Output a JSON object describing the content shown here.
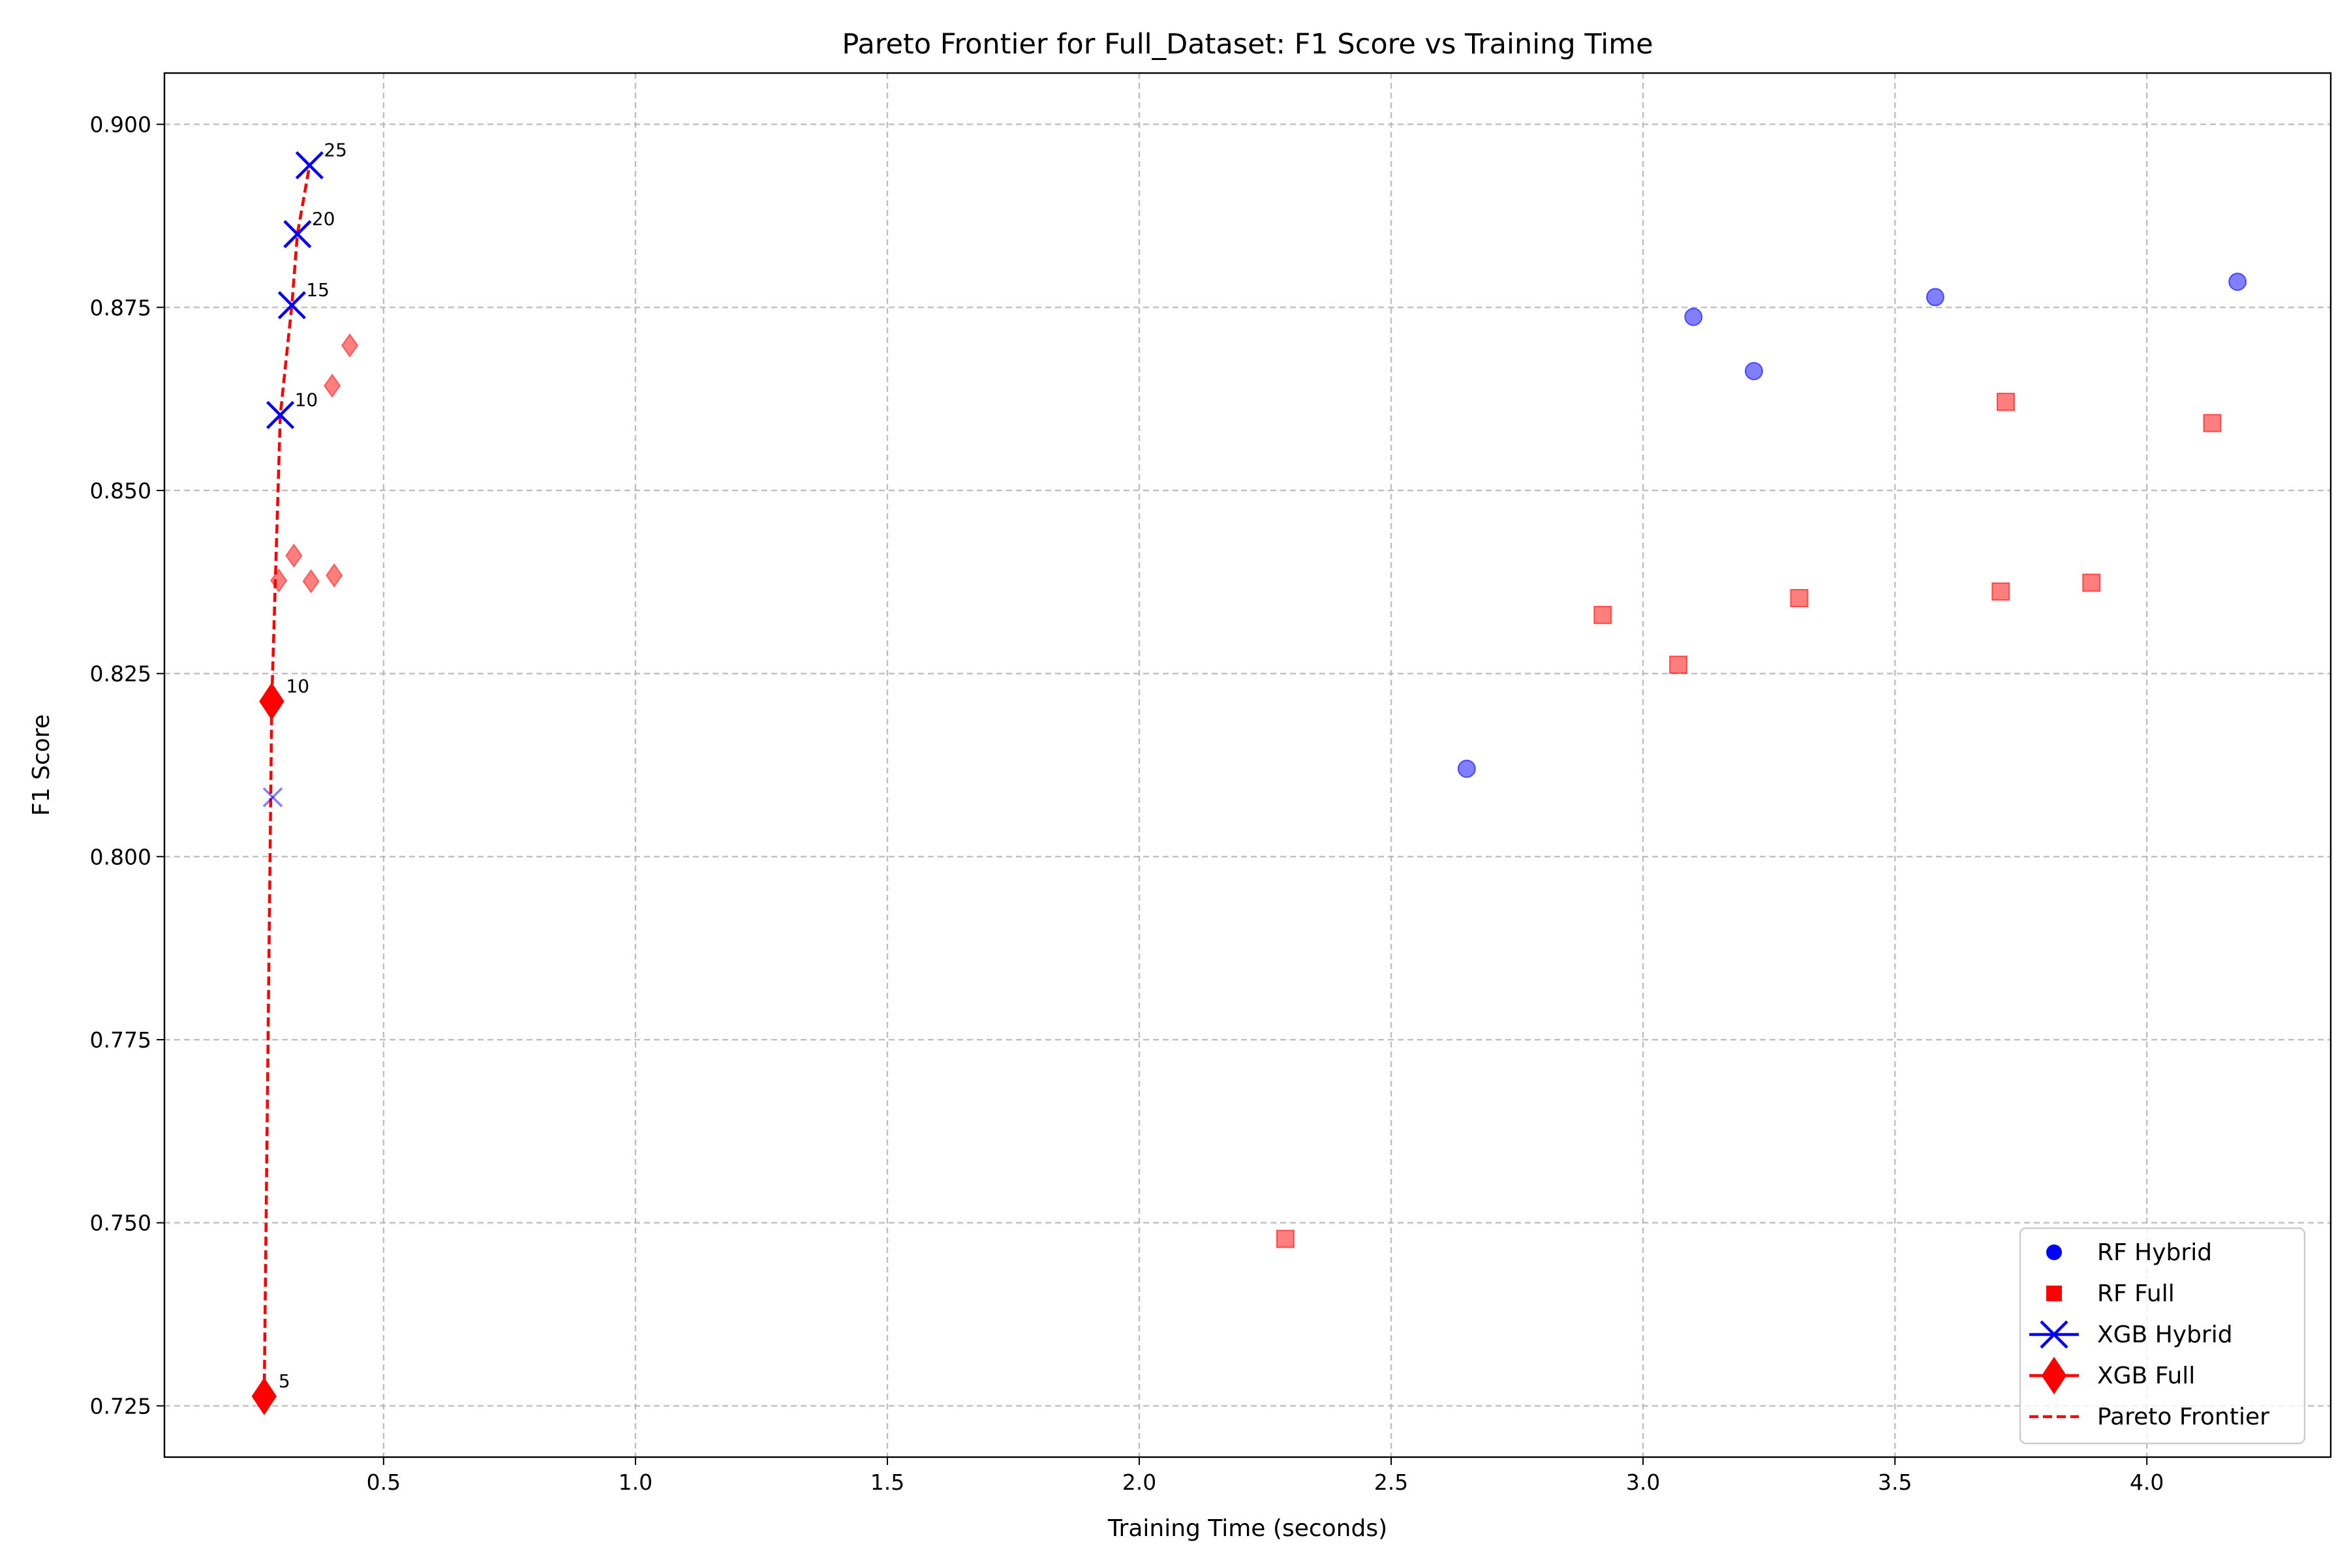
{
  "chart_data": {
    "type": "scatter",
    "title": "Pareto Frontier for Full_Dataset: F1 Score vs Training Time",
    "xlabel": "Training Time (seconds)",
    "ylabel": "F1 Score",
    "xlim": [
      0.065,
      4.365
    ],
    "ylim": [
      0.718,
      0.907
    ],
    "x_ticks": [
      0.5,
      1.0,
      1.5,
      2.0,
      2.5,
      3.0,
      3.5,
      4.0
    ],
    "x_tick_labels": [
      "0.5",
      "1.0",
      "1.5",
      "2.0",
      "2.5",
      "3.0",
      "3.5",
      "4.0"
    ],
    "y_ticks": [
      0.725,
      0.75,
      0.775,
      0.8,
      0.825,
      0.85,
      0.875,
      0.9
    ],
    "y_tick_labels": [
      "0.725",
      "0.750",
      "0.775",
      "0.800",
      "0.825",
      "0.850",
      "0.875",
      "0.900"
    ],
    "grid": true,
    "legend_position": "bottom-right",
    "colors": {
      "blue": "#0000ff",
      "red": "#ff0000"
    },
    "series": [
      {
        "name": "RF Hybrid",
        "marker": "circle",
        "color": "#0000ff",
        "points": [
          {
            "x": 2.65,
            "y": 0.812
          },
          {
            "x": 3.1,
            "y": 0.8737
          },
          {
            "x": 3.22,
            "y": 0.8663
          },
          {
            "x": 3.58,
            "y": 0.8764
          },
          {
            "x": 4.18,
            "y": 0.8785
          }
        ]
      },
      {
        "name": "RF Full",
        "marker": "square",
        "color": "#ff0000",
        "points": [
          {
            "x": 2.29,
            "y": 0.7478
          },
          {
            "x": 2.92,
            "y": 0.833
          },
          {
            "x": 3.07,
            "y": 0.8262
          },
          {
            "x": 3.31,
            "y": 0.8353
          },
          {
            "x": 3.71,
            "y": 0.8362
          },
          {
            "x": 3.72,
            "y": 0.8621
          },
          {
            "x": 3.89,
            "y": 0.8374
          },
          {
            "x": 4.13,
            "y": 0.8592
          }
        ]
      },
      {
        "name": "XGB Hybrid",
        "marker": "x",
        "color": "#0000ff",
        "points": [
          {
            "x": 0.28,
            "y": 0.8081
          },
          {
            "x": 0.295,
            "y": 0.8603,
            "label": "10",
            "pareto": true
          },
          {
            "x": 0.318,
            "y": 0.8753,
            "label": "15",
            "pareto": true
          },
          {
            "x": 0.329,
            "y": 0.885,
            "label": "20",
            "pareto": true
          },
          {
            "x": 0.353,
            "y": 0.8944,
            "label": "25",
            "pareto": true
          }
        ]
      },
      {
        "name": "XGB Full",
        "marker": "diamond",
        "color": "#ff0000",
        "points": [
          {
            "x": 0.263,
            "y": 0.7263,
            "label": "5",
            "pareto": true
          },
          {
            "x": 0.278,
            "y": 0.8212,
            "label": "10",
            "pareto": true
          },
          {
            "x": 0.292,
            "y": 0.8377
          },
          {
            "x": 0.322,
            "y": 0.8411
          },
          {
            "x": 0.356,
            "y": 0.8376
          },
          {
            "x": 0.398,
            "y": 0.8643
          },
          {
            "x": 0.402,
            "y": 0.8384
          },
          {
            "x": 0.433,
            "y": 0.8698
          }
        ]
      }
    ],
    "pareto_frontier": {
      "name": "Pareto Frontier",
      "color": "#ff0000",
      "points": [
        {
          "x": 0.263,
          "y": 0.7263
        },
        {
          "x": 0.278,
          "y": 0.8212
        },
        {
          "x": 0.295,
          "y": 0.8603
        },
        {
          "x": 0.318,
          "y": 0.8753
        },
        {
          "x": 0.329,
          "y": 0.885
        },
        {
          "x": 0.353,
          "y": 0.8944
        }
      ]
    },
    "legend": [
      "RF Hybrid",
      "RF Full",
      "XGB Hybrid",
      "XGB Full",
      "Pareto Frontier"
    ]
  }
}
